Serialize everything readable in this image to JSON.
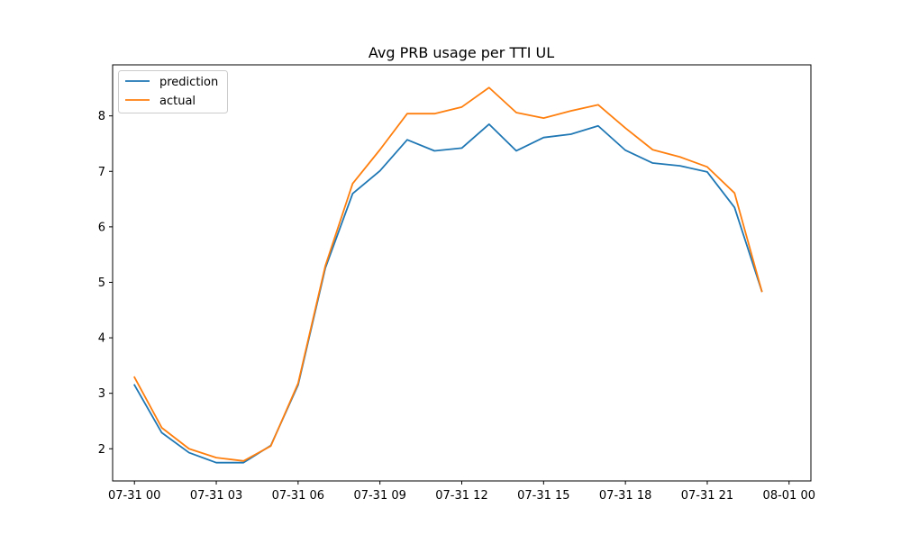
{
  "chart_data": {
    "type": "line",
    "title": "Avg PRB usage per TTI UL",
    "xlabel": "",
    "ylabel": "",
    "x": [
      "07-31 00:00",
      "07-31 01:00",
      "07-31 02:00",
      "07-31 03:00",
      "07-31 04:00",
      "07-31 05:00",
      "07-31 06:00",
      "07-31 07:00",
      "07-31 08:00",
      "07-31 09:00",
      "07-31 10:00",
      "07-31 11:00",
      "07-31 12:00",
      "07-31 13:00",
      "07-31 14:00",
      "07-31 15:00",
      "07-31 16:00",
      "07-31 17:00",
      "07-31 18:00",
      "07-31 19:00",
      "07-31 20:00",
      "07-31 21:00",
      "07-31 22:00",
      "07-31 23:00"
    ],
    "series": [
      {
        "name": "prediction",
        "color": "#1f77b4",
        "values": [
          3.15,
          2.29,
          1.93,
          1.75,
          1.75,
          2.06,
          3.15,
          5.26,
          6.6,
          7.01,
          7.57,
          7.37,
          7.42,
          7.85,
          7.37,
          7.61,
          7.67,
          7.82,
          7.38,
          7.15,
          7.1,
          6.99,
          6.35,
          4.84
        ]
      },
      {
        "name": "actual",
        "color": "#ff7f0e",
        "values": [
          3.29,
          2.38,
          2.0,
          1.84,
          1.78,
          2.05,
          3.18,
          5.3,
          6.78,
          7.39,
          8.04,
          8.04,
          8.16,
          8.51,
          8.06,
          7.96,
          8.09,
          8.2,
          7.78,
          7.39,
          7.26,
          7.08,
          6.61,
          4.84
        ]
      }
    ],
    "xlim": [
      -0.8,
      24.8
    ],
    "ylim": [
      1.42,
      8.92
    ],
    "xticks": [
      {
        "pos": 0,
        "label": "07-31 00"
      },
      {
        "pos": 3,
        "label": "07-31 03"
      },
      {
        "pos": 6,
        "label": "07-31 06"
      },
      {
        "pos": 9,
        "label": "07-31 09"
      },
      {
        "pos": 12,
        "label": "07-31 12"
      },
      {
        "pos": 15,
        "label": "07-31 15"
      },
      {
        "pos": 18,
        "label": "07-31 18"
      },
      {
        "pos": 21,
        "label": "07-31 21"
      },
      {
        "pos": 24,
        "label": "08-01 00"
      }
    ],
    "yticks": [
      2,
      3,
      4,
      5,
      6,
      7,
      8
    ],
    "grid": false,
    "legend_position": "top-left"
  }
}
